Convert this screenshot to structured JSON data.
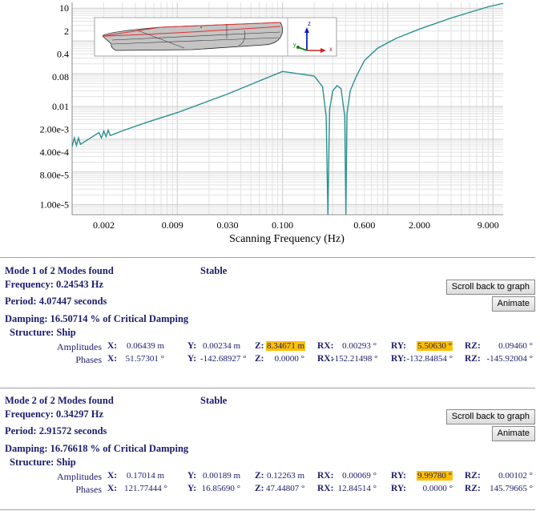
{
  "chart_data": {
    "type": "line",
    "xlabel": "Scanning Frequency (Hz)",
    "xscale": "log",
    "yscale": "log",
    "xlim": [
      0.001,
      12.5
    ],
    "ylim": [
      5e-06,
      15
    ],
    "grid": true,
    "x_ticks": [
      {
        "v": 0.002,
        "label": "0.002"
      },
      {
        "v": 0.009,
        "label": "0.009"
      },
      {
        "v": 0.03,
        "label": "0.030"
      },
      {
        "v": 0.1,
        "label": "0.100"
      },
      {
        "v": 0.6,
        "label": "0.600"
      },
      {
        "v": 2,
        "label": "2.000"
      },
      {
        "v": 9,
        "label": "9.000"
      }
    ],
    "y_ticks": [
      {
        "v": 10,
        "label": "10"
      },
      {
        "v": 2,
        "label": "2"
      },
      {
        "v": 0.4,
        "label": "0.4"
      },
      {
        "v": 0.08,
        "label": "0.08"
      },
      {
        "v": 0.01,
        "label": "0.01"
      },
      {
        "v": 0.002,
        "label": "2.00e-3"
      },
      {
        "v": 0.0004,
        "label": "4.00e-4"
      },
      {
        "v": 8e-05,
        "label": "8.00e-5"
      },
      {
        "v": 1e-05,
        "label": "1.00e-5"
      }
    ],
    "line_color": "#2a9090",
    "series": [
      {
        "x": [
          0.001,
          0.00105,
          0.0011,
          0.00115,
          0.0012,
          0.0018,
          0.0019,
          0.002,
          0.0021,
          0.0022,
          0.0023,
          0.003,
          0.005,
          0.01,
          0.03,
          0.1,
          0.2,
          0.24,
          0.26,
          0.27,
          0.28,
          0.3,
          0.33,
          0.36,
          0.39,
          0.4,
          0.41,
          0.44,
          0.5,
          0.6,
          0.8,
          1.2,
          2,
          4,
          9,
          12.5
        ],
        "y": [
          0.0006,
          0.0011,
          0.00065,
          0.0011,
          0.0007,
          0.0016,
          0.0011,
          0.0018,
          0.0012,
          0.0019,
          0.0013,
          0.0018,
          0.0032,
          0.0065,
          0.024,
          0.117,
          0.085,
          0.04,
          0.005,
          1e-07,
          0.008,
          0.03,
          0.043,
          0.035,
          0.005,
          1e-07,
          0.006,
          0.03,
          0.08,
          0.25,
          0.6,
          1.2,
          2.3,
          5,
          11,
          14
        ]
      }
    ]
  },
  "inset": {
    "axes": [
      "x",
      "y",
      "z"
    ],
    "colors": {
      "x": "#d02020",
      "y": "#108010",
      "z": "#1020c0"
    }
  },
  "highlight_color": "#ffc000",
  "modes": [
    {
      "title": "Mode 1 of 2 Modes found",
      "stability": "Stable",
      "frequency": "Frequency: 0.24543 Hz",
      "period": "Period: 4.07447 seconds",
      "damping": "Damping: 16.50714 % of Critical Damping",
      "structure": "Structure: Ship",
      "scroll_button": "Scroll back to graph",
      "animate_button": "Animate",
      "amplitudes_label": "Amplitudes",
      "phases_label": "Phases",
      "amplitudes": [
        {
          "k": "X:",
          "v": "0.06439 m"
        },
        {
          "k": "Y:",
          "v": "0.00234 m"
        },
        {
          "k": "Z:",
          "v": "8.34671 m",
          "hl": true
        },
        {
          "k": "RX:",
          "v": "0.00293 °"
        },
        {
          "k": "RY:",
          "v": "5.50630 °",
          "hl": true
        },
        {
          "k": "RZ:",
          "v": "0.09460 °"
        }
      ],
      "phases": [
        {
          "k": "X:",
          "v": "51.57301 °"
        },
        {
          "k": "Y:",
          "v": "-142.68927 °"
        },
        {
          "k": "Z:",
          "v": "0.0000 °"
        },
        {
          "k": "RX:",
          "v": "-152.21498 °"
        },
        {
          "k": "RY:",
          "v": "-132.84854 °"
        },
        {
          "k": "RZ:",
          "v": "-145.92004 °"
        }
      ]
    },
    {
      "title": "Mode 2 of 2 Modes found",
      "stability": "Stable",
      "frequency": "Frequency: 0.34297 Hz",
      "period": "Period: 2.91572 seconds",
      "damping": "Damping: 16.76618 % of Critical Damping",
      "structure": "Structure: Ship",
      "scroll_button": "Scroll back to graph",
      "animate_button": "Animate",
      "amplitudes_label": "Amplitudes",
      "phases_label": "Phases",
      "amplitudes": [
        {
          "k": "X:",
          "v": "0.17014 m"
        },
        {
          "k": "Y:",
          "v": "0.00189 m"
        },
        {
          "k": "Z:",
          "v": "0.12263 m"
        },
        {
          "k": "RX:",
          "v": "0.00069 °"
        },
        {
          "k": "RY:",
          "v": "9.99780 °",
          "hl": true
        },
        {
          "k": "RZ:",
          "v": "0.00102 °"
        }
      ],
      "phases": [
        {
          "k": "X:",
          "v": "121.77444 °"
        },
        {
          "k": "Y:",
          "v": "16.85690 °"
        },
        {
          "k": "Z:",
          "v": "47.44807 °"
        },
        {
          "k": "RX:",
          "v": "12.84514 °"
        },
        {
          "k": "RY:",
          "v": "0.0000 °"
        },
        {
          "k": "RZ:",
          "v": "145.79665 °"
        }
      ]
    }
  ]
}
